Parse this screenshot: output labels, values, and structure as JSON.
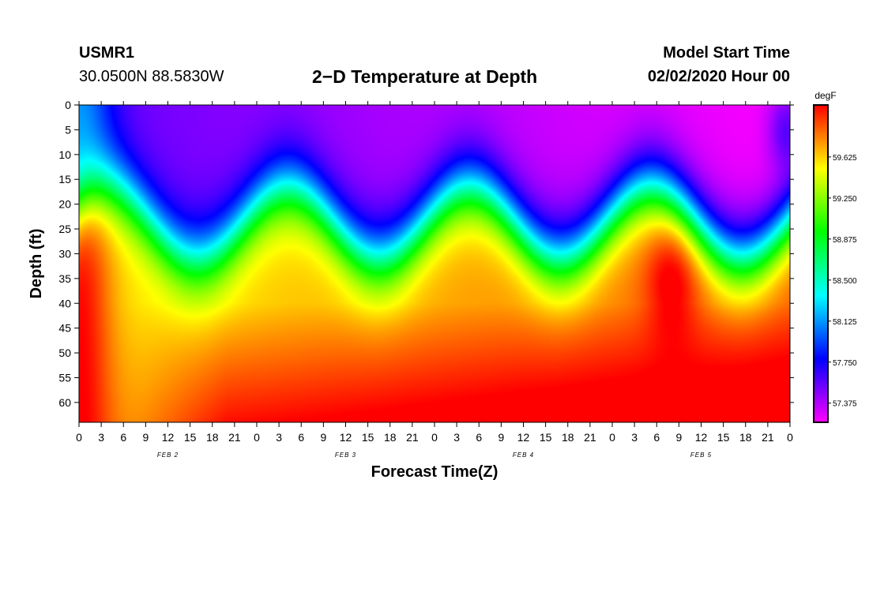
{
  "header": {
    "station": "USMR1",
    "coords": "30.0500N 88.5830W",
    "title": "2−D Temperature at Depth",
    "model_start_label": "Model Start Time",
    "model_start_value": "02/02/2020 Hour 00"
  },
  "chart_data": {
    "type": "heatmap",
    "title": "2−D Temperature at Depth",
    "xlabel": "Forecast Time(Z)",
    "ylabel": "Depth (ft)",
    "x_hours_range": [
      0,
      96
    ],
    "x_tick_hours": [
      0,
      3,
      6,
      9,
      12,
      15,
      18,
      21,
      24,
      27,
      30,
      33,
      36,
      39,
      42,
      45,
      48,
      51,
      54,
      57,
      60,
      63,
      66,
      69,
      72,
      75,
      78,
      81,
      84,
      87,
      90,
      93,
      96
    ],
    "x_tick_labels": [
      "0",
      "3",
      "6",
      "9",
      "12",
      "15",
      "18",
      "21",
      "0",
      "3",
      "6",
      "9",
      "12",
      "15",
      "18",
      "21",
      "0",
      "3",
      "6",
      "9",
      "12",
      "15",
      "18",
      "21",
      "0",
      "3",
      "6",
      "9",
      "12",
      "15",
      "18",
      "21",
      "0"
    ],
    "day_labels": [
      {
        "hour": 12,
        "text": "FEB 2"
      },
      {
        "hour": 36,
        "text": "FEB 3"
      },
      {
        "hour": 60,
        "text": "FEB 4"
      },
      {
        "hour": 84,
        "text": "FEB 5"
      }
    ],
    "ylim": [
      0,
      64
    ],
    "y_ticks": [
      0,
      5,
      10,
      15,
      20,
      25,
      30,
      35,
      40,
      45,
      50,
      55,
      60
    ],
    "colorbar": {
      "unit": "degF",
      "range": [
        57.2,
        60.1
      ],
      "tick_values": [
        57.375,
        57.75,
        58.125,
        58.5,
        58.875,
        59.25,
        59.625
      ],
      "tick_labels": [
        "57.375",
        "57.750",
        "58.125",
        "58.500",
        "58.875",
        "59.250",
        "59.625"
      ]
    },
    "grid": false
  }
}
